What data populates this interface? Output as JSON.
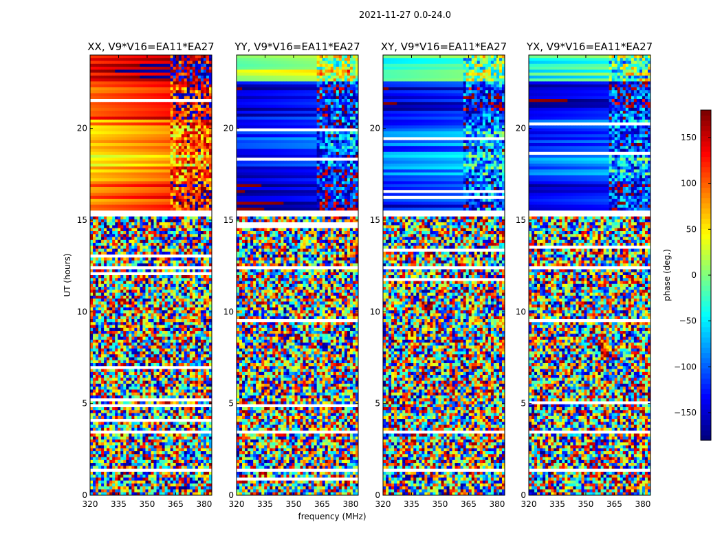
{
  "figure": {
    "suptitle": "2021-11-27 0.0-24.0"
  },
  "chart_data": {
    "type": "heatmap",
    "title": "2021-11-27 0.0-24.0",
    "xlabel": "frequency (MHz)",
    "ylabel": "UT (hours)",
    "xlim": [
      320,
      384
    ],
    "ylim": [
      0,
      24
    ],
    "xticks": [
      320,
      335,
      350,
      365,
      380
    ],
    "yticks": [
      0,
      5,
      10,
      15,
      20
    ],
    "colorbar": {
      "label": "phase (deg.)",
      "range": [
        -180,
        180
      ],
      "ticks": [
        -150,
        -100,
        -50,
        0,
        50,
        100,
        150
      ],
      "tick_labels": [
        "−150",
        "−100",
        "−50",
        "0",
        "50",
        "100",
        "150"
      ],
      "colormap": "jet",
      "colors": [
        "#000080",
        "#0000ff",
        "#0080ff",
        "#00ffff",
        "#80ff80",
        "#ffff00",
        "#ff8000",
        "#ff0000",
        "#800000"
      ]
    },
    "panels": [
      {
        "title": "XX, V9*V16=EA11*EA27",
        "description": "coherent smooth phase after ~15.6 h, noise before",
        "coherent_start_ut": 15.6,
        "band_phase_deg": [
          {
            "ut_from": 22.5,
            "ut_to": 24.0,
            "phase_deg": 140
          },
          {
            "ut_from": 20.5,
            "ut_to": 22.5,
            "phase_deg": 110
          },
          {
            "ut_from": 18.8,
            "ut_to": 20.5,
            "phase_deg": 70
          },
          {
            "ut_from": 17.5,
            "ut_to": 18.8,
            "phase_deg": 55
          },
          {
            "ut_from": 15.6,
            "ut_to": 17.5,
            "phase_deg": 90
          }
        ]
      },
      {
        "title": "YY, V9*V16=EA11*EA27",
        "description": "coherent phase after ~15.6 h, mostly blue",
        "coherent_start_ut": 15.6,
        "band_phase_deg": [
          {
            "ut_from": 22.5,
            "ut_to": 24.0,
            "phase_deg": 10
          },
          {
            "ut_from": 20.5,
            "ut_to": 22.5,
            "phase_deg": -150
          },
          {
            "ut_from": 18.8,
            "ut_to": 20.5,
            "phase_deg": -120
          },
          {
            "ut_from": 17.5,
            "ut_to": 18.8,
            "phase_deg": -130
          },
          {
            "ut_from": 15.6,
            "ut_to": 17.5,
            "phase_deg": -160
          }
        ]
      },
      {
        "title": "XY, V9*V16=EA11*EA27",
        "description": "coherent phase after ~15.6 h, cyan to blue",
        "coherent_start_ut": 15.6,
        "band_phase_deg": [
          {
            "ut_from": 22.5,
            "ut_to": 24.0,
            "phase_deg": -30
          },
          {
            "ut_from": 20.5,
            "ut_to": 22.5,
            "phase_deg": -150
          },
          {
            "ut_from": 18.8,
            "ut_to": 20.5,
            "phase_deg": -110
          },
          {
            "ut_from": 17.5,
            "ut_to": 18.8,
            "phase_deg": -90
          },
          {
            "ut_from": 15.6,
            "ut_to": 17.5,
            "phase_deg": -140
          }
        ]
      },
      {
        "title": "YX, V9*V16=EA11*EA27",
        "description": "coherent phase after ~15.6 h, blue",
        "coherent_start_ut": 15.6,
        "band_phase_deg": [
          {
            "ut_from": 22.5,
            "ut_to": 24.0,
            "phase_deg": -40
          },
          {
            "ut_from": 20.5,
            "ut_to": 22.5,
            "phase_deg": -160
          },
          {
            "ut_from": 18.8,
            "ut_to": 20.5,
            "phase_deg": -120
          },
          {
            "ut_from": 17.5,
            "ut_to": 18.8,
            "phase_deg": -100
          },
          {
            "ut_from": 15.6,
            "ut_to": 17.5,
            "phase_deg": -150
          }
        ]
      }
    ],
    "flagged_ut_gaps": [
      [
        1.3,
        1.5
      ],
      [
        3.4,
        3.5
      ],
      [
        7.0,
        7.05
      ],
      [
        12.3,
        12.5
      ],
      [
        15.2,
        15.5
      ]
    ]
  }
}
